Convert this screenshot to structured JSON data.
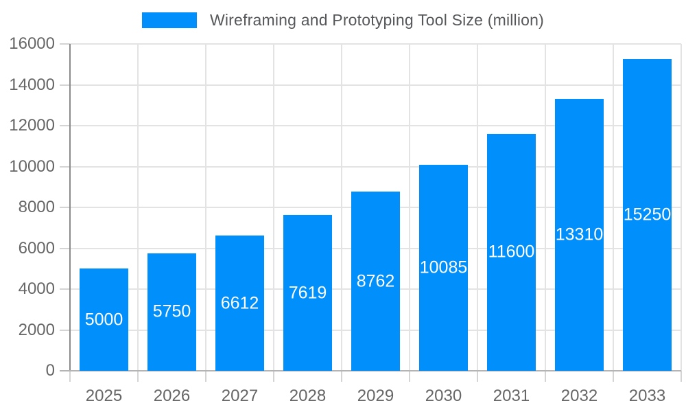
{
  "legend": {
    "label": "Wireframing and Prototyping Tool Size (million)"
  },
  "colors": {
    "bar": "#008FFB",
    "grid": "#e3e3e3",
    "tick": "#d4d4d4",
    "axis_y_line": "#8a8a8a",
    "axis_x_line": "#b4b4b4",
    "axis_text": "#666666",
    "legend_text": "#55575a",
    "bar_value_text": "#ffffff",
    "background": "#ffffff"
  },
  "chart_data": {
    "type": "bar",
    "title": "Wireframing and Prototyping Tool Size (million)",
    "categories": [
      "2025",
      "2026",
      "2027",
      "2028",
      "2029",
      "2030",
      "2031",
      "2032",
      "2033"
    ],
    "values": [
      5000,
      5750,
      6612,
      7619,
      8762,
      10085,
      11600,
      13310,
      15250
    ],
    "series": [
      {
        "name": "Wireframing and Prototyping Tool Size (million)",
        "values": [
          5000,
          5750,
          6612,
          7619,
          8762,
          10085,
          11600,
          13310,
          15250
        ]
      }
    ],
    "xlabel": "",
    "ylabel": "",
    "ylim": [
      0,
      16000
    ],
    "y_ticks": [
      0,
      2000,
      4000,
      6000,
      8000,
      10000,
      12000,
      14000,
      16000
    ],
    "grid": "on",
    "legend_position": "top",
    "value_labels": "inside-center"
  }
}
